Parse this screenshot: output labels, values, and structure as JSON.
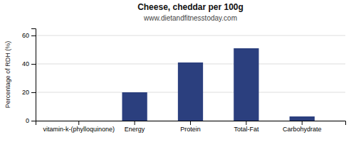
{
  "chart_data": {
    "type": "bar",
    "title": "Cheese, cheddar per 100g",
    "subtitle": "www.dietandfitnesstoday.com",
    "categories": [
      "vitamin-k-(phylloquinone)",
      "Energy",
      "Protein",
      "Total-Fat",
      "Carbohydrate"
    ],
    "values": [
      0,
      20,
      41,
      51,
      3
    ],
    "color": "#2B3F7E",
    "ylabel": "Percentage of RDH (%)",
    "ylim": [
      0,
      65
    ],
    "yticks": [
      0,
      20,
      40,
      60
    ],
    "grid": true
  }
}
